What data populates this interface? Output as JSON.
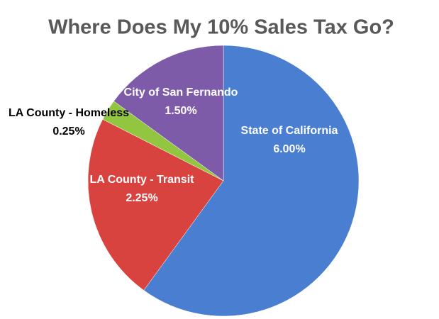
{
  "chart_data": {
    "type": "pie",
    "title": "Where Does My 10% Sales Tax Go?",
    "categories": [
      "State of California",
      "LA County - Transit",
      "LA County - Homeless",
      "City of San Fernando"
    ],
    "values": [
      6,
      2.25,
      0.25,
      1.5
    ],
    "value_labels": [
      "6.00%",
      "2.25%",
      "0.25%",
      "1.50%"
    ],
    "colors": [
      "#4a7ed0",
      "#d8423f",
      "#93c640",
      "#7e5ba9"
    ]
  }
}
